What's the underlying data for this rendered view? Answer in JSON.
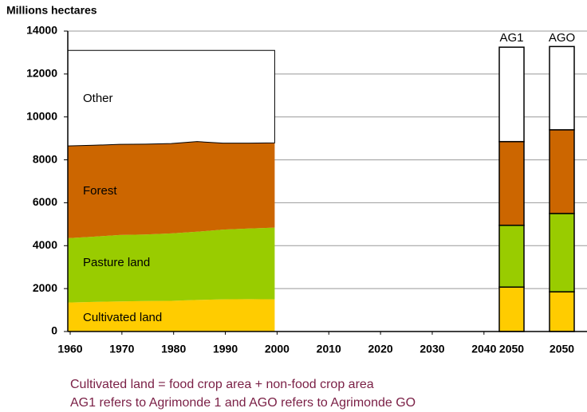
{
  "chart_data": {
    "type": "stacked-area",
    "y_label": "Millions hectares",
    "x": [
      1960,
      1965,
      1970,
      1975,
      1980,
      1985,
      1990,
      1995,
      2000
    ],
    "series": [
      {
        "name": "Cultivated land",
        "color": "#ffcc00",
        "values": [
          1350,
          1380,
          1400,
          1420,
          1430,
          1470,
          1500,
          1510,
          1500
        ]
      },
      {
        "name": "Pasture land",
        "color": "#99cc00",
        "values": [
          3000,
          3040,
          3100,
          3100,
          3140,
          3180,
          3250,
          3290,
          3340
        ]
      },
      {
        "name": "Forest",
        "color": "#cc6600",
        "values": [
          4300,
          4260,
          4220,
          4210,
          4190,
          4200,
          4030,
          3980,
          3950
        ]
      },
      {
        "name": "Other",
        "color": "#ffffff",
        "values": [
          4450,
          4420,
          4380,
          4370,
          4340,
          4250,
          4320,
          4320,
          4310
        ]
      }
    ],
    "scenarios": [
      {
        "name": "AG1",
        "year_label": "2050",
        "values": [
          2070,
          2880,
          3900,
          4400
        ]
      },
      {
        "name": "AGO",
        "year_label": "2050",
        "values": [
          1850,
          3650,
          3900,
          3880
        ]
      }
    ],
    "ylim": [
      0,
      14000
    ],
    "yticks": [
      0,
      2000,
      4000,
      6000,
      8000,
      10000,
      12000,
      14000
    ],
    "xlim": [
      1960,
      2061
    ],
    "xticks": [
      1960,
      1970,
      1980,
      1990,
      2000,
      2010,
      2020,
      2030,
      2040
    ],
    "grid": true
  },
  "notes": [
    "Cultivated land = food crop area + non-food crop area",
    "AG1 refers to Agrimonde 1 and AGO refers to Agrimonde GO"
  ]
}
